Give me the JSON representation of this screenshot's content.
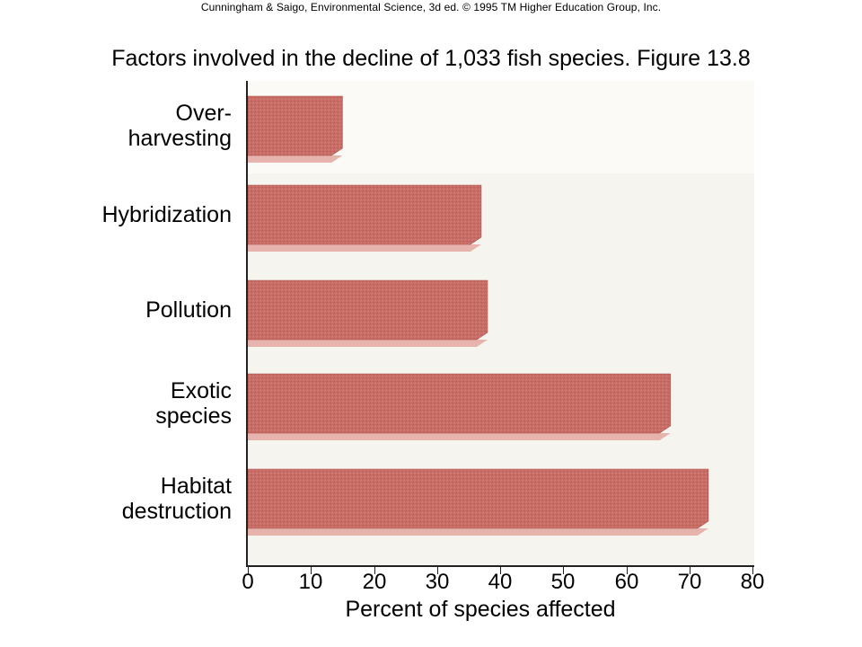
{
  "credit": "Cunningham & Saigo, Environmental Science, 3d ed. © 1995 TM Higher Education Group, Inc.",
  "chart_data": {
    "type": "bar",
    "orientation": "horizontal",
    "title": "Factors involved in the decline of 1,033 fish species. Figure 13.8",
    "xlabel": "Percent of species affected",
    "ylabel": "",
    "xlim": [
      0,
      80
    ],
    "xticks": [
      "0",
      "10",
      "20",
      "30",
      "40",
      "50",
      "60",
      "70",
      "80"
    ],
    "categories": [
      [
        "Over-",
        "harvesting"
      ],
      [
        "Hybridization"
      ],
      [
        "Pollution"
      ],
      [
        "Exotic",
        "species"
      ],
      [
        "Habitat",
        "destruction"
      ]
    ],
    "values": [
      15,
      37,
      38,
      67,
      73
    ],
    "bar_color": "#c8706a",
    "shadow_color": "#e6b3ad",
    "grid": false
  }
}
